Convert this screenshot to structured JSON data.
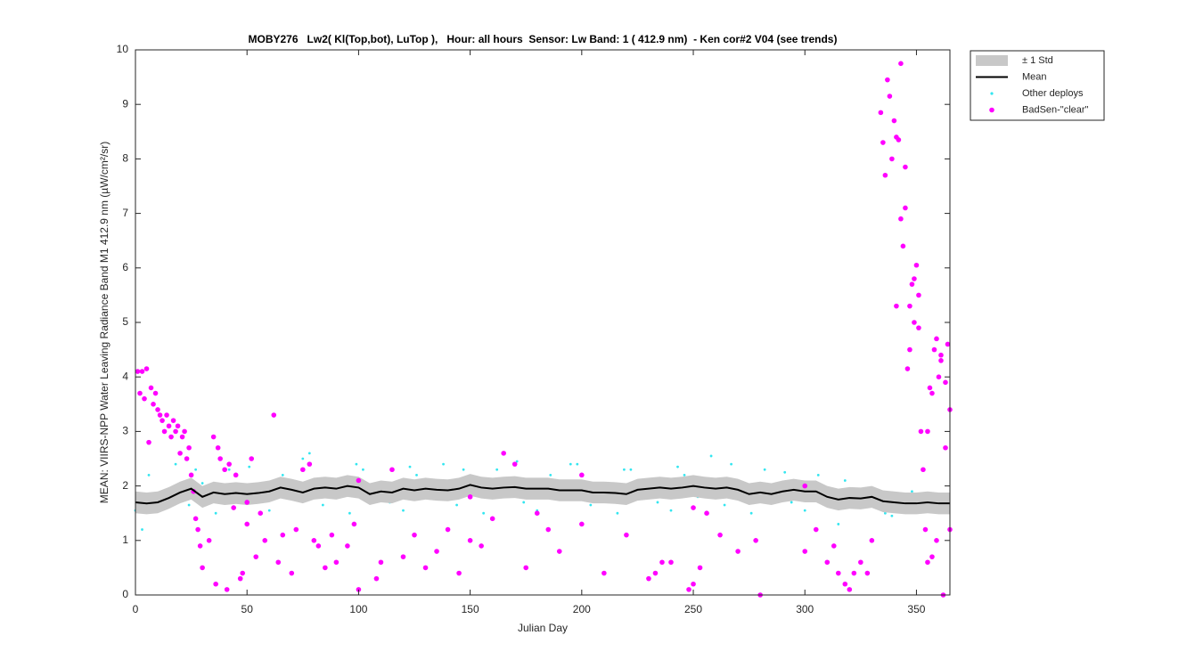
{
  "chart_data": {
    "type": "line",
    "title": "MOBY276   Lw2( Kl(Top,bot), LuTop ),   Hour: all hours  Sensor: Lw Band: 1 ( 412.9 nm)  - Ken cor#2 V04 (see trends)",
    "x_label": "Julian Day",
    "y_label": "MEAN: VIIRS-NPP Water Leaving Radiance Band M1 412.9 nm (µW/cm²/sr)",
    "xlim": [
      0,
      365
    ],
    "ylim": [
      0,
      10
    ],
    "xticks": [
      0,
      50,
      100,
      150,
      200,
      250,
      300,
      350
    ],
    "yticks": [
      0,
      1,
      2,
      3,
      4,
      5,
      6,
      7,
      8,
      9,
      10
    ],
    "legend": "outside-upper-right",
    "series": [
      {
        "name": "± 1 Std",
        "style": "band",
        "color": "#c8c8c8",
        "x": [
          0,
          5,
          10,
          15,
          20,
          25,
          30,
          35,
          40,
          45,
          50,
          55,
          60,
          65,
          70,
          75,
          80,
          85,
          90,
          95,
          100,
          105,
          110,
          115,
          120,
          125,
          130,
          135,
          140,
          145,
          150,
          155,
          160,
          165,
          170,
          175,
          180,
          185,
          190,
          195,
          200,
          205,
          210,
          215,
          220,
          225,
          230,
          235,
          240,
          245,
          250,
          255,
          260,
          265,
          270,
          275,
          280,
          285,
          290,
          295,
          300,
          305,
          310,
          315,
          320,
          325,
          330,
          335,
          340,
          345,
          350,
          355,
          360,
          365
        ],
        "values": [
          1.9,
          1.88,
          1.9,
          1.98,
          2.08,
          2.15,
          2.0,
          2.08,
          2.05,
          2.07,
          2.05,
          2.07,
          2.1,
          2.17,
          2.13,
          2.08,
          2.15,
          2.17,
          2.15,
          2.2,
          2.17,
          2.05,
          2.1,
          2.08,
          2.15,
          2.12,
          2.15,
          2.13,
          2.12,
          2.15,
          2.22,
          2.17,
          2.15,
          2.17,
          2.18,
          2.15,
          2.15,
          2.15,
          2.12,
          2.12,
          2.12,
          2.08,
          2.08,
          2.07,
          2.05,
          2.13,
          2.15,
          2.17,
          2.15,
          2.17,
          2.2,
          2.17,
          2.15,
          2.17,
          2.13,
          2.05,
          2.08,
          2.05,
          2.1,
          2.13,
          2.1,
          2.1,
          2.0,
          1.95,
          1.98,
          1.97,
          2.0,
          1.92,
          1.9,
          1.88,
          1.88,
          1.9,
          1.88,
          1.88
        ],
        "lower": [
          1.5,
          1.48,
          1.5,
          1.58,
          1.68,
          1.75,
          1.6,
          1.68,
          1.65,
          1.67,
          1.65,
          1.67,
          1.7,
          1.77,
          1.73,
          1.68,
          1.75,
          1.77,
          1.75,
          1.8,
          1.77,
          1.65,
          1.7,
          1.68,
          1.75,
          1.72,
          1.75,
          1.73,
          1.72,
          1.75,
          1.82,
          1.77,
          1.75,
          1.77,
          1.78,
          1.75,
          1.75,
          1.75,
          1.72,
          1.72,
          1.72,
          1.68,
          1.68,
          1.67,
          1.65,
          1.73,
          1.75,
          1.77,
          1.75,
          1.77,
          1.8,
          1.77,
          1.75,
          1.77,
          1.73,
          1.65,
          1.68,
          1.65,
          1.7,
          1.73,
          1.7,
          1.7,
          1.6,
          1.55,
          1.58,
          1.57,
          1.6,
          1.52,
          1.5,
          1.48,
          1.48,
          1.5,
          1.48,
          1.48
        ]
      },
      {
        "name": "Mean",
        "style": "line",
        "color": "#000000",
        "x": [
          0,
          5,
          10,
          15,
          20,
          25,
          30,
          35,
          40,
          45,
          50,
          55,
          60,
          65,
          70,
          75,
          80,
          85,
          90,
          95,
          100,
          105,
          110,
          115,
          120,
          125,
          130,
          135,
          140,
          145,
          150,
          155,
          160,
          165,
          170,
          175,
          180,
          185,
          190,
          195,
          200,
          205,
          210,
          215,
          220,
          225,
          230,
          235,
          240,
          245,
          250,
          255,
          260,
          265,
          270,
          275,
          280,
          285,
          290,
          295,
          300,
          305,
          310,
          315,
          320,
          325,
          330,
          335,
          340,
          345,
          350,
          355,
          360,
          365
        ],
        "values": [
          1.7,
          1.68,
          1.7,
          1.78,
          1.88,
          1.95,
          1.8,
          1.88,
          1.85,
          1.87,
          1.85,
          1.87,
          1.9,
          1.97,
          1.93,
          1.88,
          1.95,
          1.97,
          1.95,
          2.0,
          1.97,
          1.85,
          1.9,
          1.88,
          1.95,
          1.92,
          1.95,
          1.93,
          1.92,
          1.95,
          2.02,
          1.97,
          1.95,
          1.97,
          1.98,
          1.95,
          1.95,
          1.95,
          1.92,
          1.92,
          1.92,
          1.88,
          1.88,
          1.87,
          1.85,
          1.93,
          1.95,
          1.97,
          1.95,
          1.97,
          2.0,
          1.97,
          1.95,
          1.97,
          1.93,
          1.85,
          1.88,
          1.85,
          1.9,
          1.93,
          1.9,
          1.9,
          1.8,
          1.75,
          1.78,
          1.77,
          1.8,
          1.72,
          1.7,
          1.68,
          1.68,
          1.7,
          1.68,
          1.68
        ]
      },
      {
        "name": "Other deploys",
        "style": "scatter",
        "color": "#33e6f0",
        "x": [
          0,
          6,
          12,
          18,
          24,
          30,
          36,
          42,
          48,
          54,
          60,
          66,
          72,
          78,
          84,
          90,
          96,
          102,
          108,
          114,
          120,
          126,
          132,
          138,
          144,
          150,
          156,
          162,
          168,
          174,
          180,
          186,
          192,
          198,
          204,
          210,
          216,
          222,
          228,
          234,
          240,
          246,
          252,
          258,
          264,
          270,
          276,
          282,
          288,
          294,
          300,
          306,
          312,
          318,
          324,
          330,
          336,
          342,
          348,
          354,
          360,
          3,
          27,
          51,
          75,
          99,
          123,
          147,
          171,
          195,
          219,
          243,
          267,
          291,
          315,
          339,
          363
        ],
        "values": [
          1.55,
          2.2,
          1.8,
          2.4,
          1.65,
          2.05,
          1.5,
          2.3,
          1.9,
          1.7,
          1.55,
          2.2,
          1.8,
          2.6,
          1.65,
          2.05,
          1.5,
          2.3,
          1.9,
          1.7,
          1.55,
          2.2,
          1.8,
          2.4,
          1.65,
          2.05,
          1.5,
          2.3,
          1.9,
          1.7,
          1.55,
          2.2,
          1.8,
          2.4,
          1.65,
          2.05,
          1.5,
          2.3,
          1.9,
          1.7,
          1.55,
          2.2,
          1.8,
          2.55,
          1.65,
          2.05,
          1.5,
          2.3,
          1.9,
          1.7,
          1.55,
          2.2,
          1.8,
          2.1,
          1.65,
          1.95,
          1.5,
          1.85,
          1.9,
          1.7,
          1.55,
          1.2,
          2.3,
          2.35,
          2.5,
          2.4,
          2.35,
          2.3,
          2.45,
          2.4,
          2.3,
          2.35,
          2.4,
          2.25,
          1.3,
          1.45,
          1.85
        ]
      },
      {
        "name": "BadSen-\"clear\"",
        "style": "scatter",
        "color": "#ff00ff",
        "x": [
          1,
          2,
          3,
          4,
          5,
          6,
          7,
          8,
          9,
          10,
          11,
          12,
          13,
          14,
          15,
          16,
          17,
          18,
          19,
          20,
          21,
          22,
          23,
          24,
          25,
          26,
          27,
          28,
          29,
          30,
          33,
          35,
          36,
          37,
          38,
          40,
          41,
          42,
          44,
          45,
          47,
          48,
          50,
          52,
          54,
          56,
          58,
          62,
          64,
          66,
          70,
          72,
          75,
          78,
          80,
          82,
          85,
          88,
          90,
          95,
          98,
          100,
          108,
          110,
          115,
          120,
          125,
          130,
          135,
          140,
          145,
          150,
          155,
          160,
          165,
          170,
          175,
          180,
          185,
          190,
          200,
          210,
          220,
          230,
          233,
          236,
          240,
          248,
          250,
          253,
          256,
          262,
          270,
          278,
          280,
          300,
          305,
          310,
          313,
          315,
          318,
          320,
          322,
          325,
          328,
          330,
          334,
          335,
          336,
          337,
          338,
          339,
          340,
          341,
          342,
          343,
          344,
          345,
          346,
          347,
          348,
          349,
          350,
          351,
          352,
          353,
          354,
          355,
          356,
          357,
          358,
          359,
          360,
          361,
          362,
          363,
          364,
          365,
          341,
          343,
          345,
          347,
          349,
          351,
          355,
          357,
          359,
          361,
          363,
          365,
          50,
          100,
          150,
          200,
          250,
          300
        ],
        "values": [
          4.1,
          3.7,
          4.1,
          3.6,
          4.15,
          2.8,
          3.8,
          3.5,
          3.7,
          3.4,
          3.3,
          3.2,
          3.0,
          3.3,
          3.1,
          2.9,
          3.2,
          3.0,
          3.1,
          2.6,
          2.9,
          3.0,
          2.5,
          2.7,
          2.2,
          1.9,
          1.4,
          1.2,
          0.9,
          0.5,
          1.0,
          2.9,
          0.2,
          2.7,
          2.5,
          2.3,
          0.1,
          2.4,
          1.6,
          2.2,
          0.3,
          0.4,
          1.3,
          2.5,
          0.7,
          1.5,
          1.0,
          3.3,
          0.6,
          1.1,
          0.4,
          1.2,
          2.3,
          2.4,
          1.0,
          0.9,
          0.5,
          1.1,
          0.6,
          0.9,
          1.3,
          0.1,
          0.3,
          0.6,
          2.3,
          0.7,
          1.1,
          0.5,
          0.8,
          1.2,
          0.4,
          1.0,
          0.9,
          1.4,
          2.6,
          2.4,
          0.5,
          1.5,
          1.2,
          0.8,
          1.3,
          0.4,
          1.1,
          0.3,
          0.4,
          0.6,
          0.6,
          0.1,
          0.2,
          0.5,
          1.5,
          1.1,
          0.8,
          1.0,
          0.0,
          0.8,
          1.2,
          0.6,
          0.9,
          0.4,
          0.2,
          0.1,
          0.4,
          0.6,
          0.4,
          1.0,
          8.85,
          8.3,
          7.7,
          9.45,
          9.15,
          8.0,
          8.7,
          8.4,
          8.35,
          9.75,
          6.4,
          7.85,
          4.15,
          5.3,
          5.7,
          5.8,
          6.05,
          5.5,
          3.0,
          2.3,
          1.2,
          0.6,
          3.8,
          3.7,
          4.5,
          4.7,
          4.0,
          4.3,
          0.0,
          3.9,
          4.6,
          3.4,
          5.3,
          6.9,
          7.1,
          4.5,
          5.0,
          4.9,
          3.0,
          0.7,
          1.0,
          4.4,
          2.7,
          1.2,
          1.7,
          2.1,
          1.8,
          2.2,
          1.6,
          2.0
        ]
      }
    ]
  }
}
